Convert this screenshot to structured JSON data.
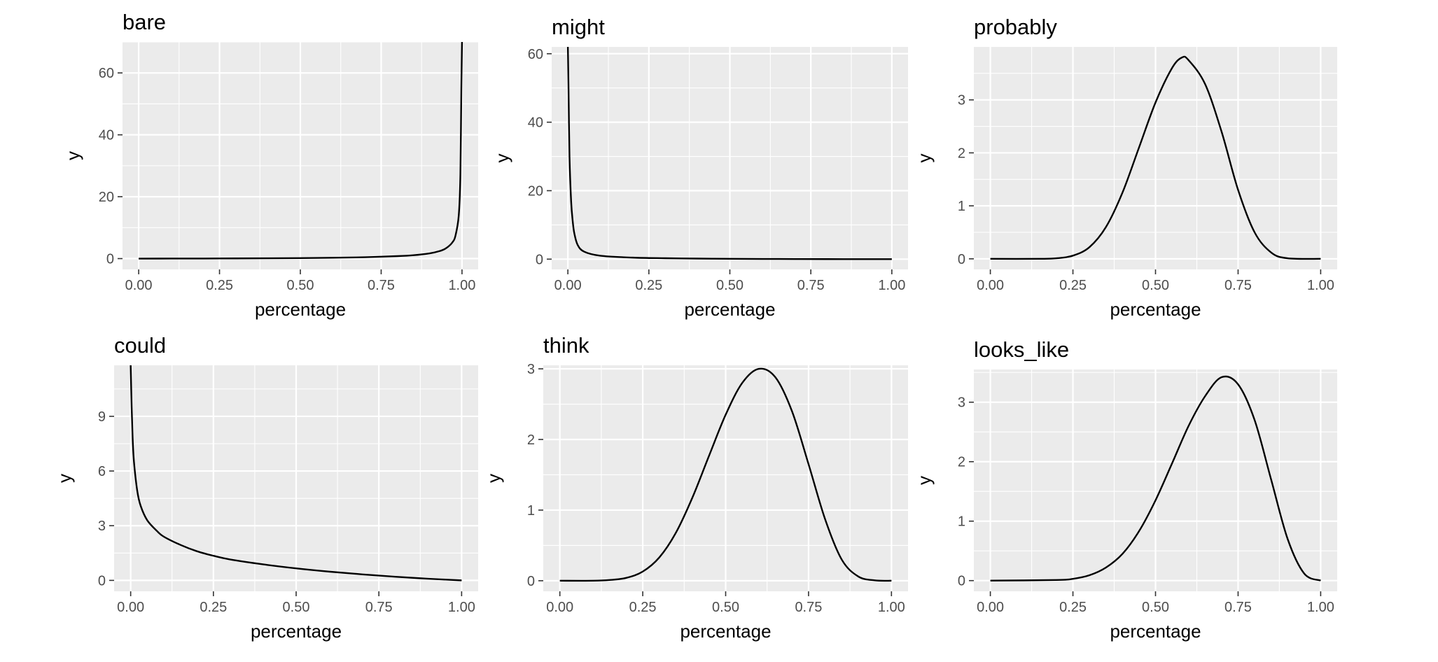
{
  "colors": {
    "panel_background": "#EBEBEB",
    "grid": "#FFFFFF",
    "line": "#000000",
    "tick_text": "#4D4D4D"
  },
  "chart_data": [
    {
      "type": "line",
      "title": "bare",
      "xlabel": "percentage",
      "ylabel": "y",
      "xlim": [
        -0.05,
        1.05
      ],
      "ylim": [
        -3.5,
        70
      ],
      "xticks": [
        0,
        0.25,
        0.5,
        0.75,
        1
      ],
      "xtick_labels": [
        "0.00",
        "0.25",
        "0.50",
        "0.75",
        "1.00"
      ],
      "yticks": [
        0,
        20,
        40,
        60
      ],
      "ytick_labels": [
        "0",
        "20",
        "40",
        "60"
      ],
      "grid": true,
      "series": [
        {
          "x": [
            0,
            0.1,
            0.2,
            0.3,
            0.4,
            0.5,
            0.6,
            0.7,
            0.8,
            0.85,
            0.9,
            0.93,
            0.95,
            0.97,
            0.98,
            0.99,
            0.995,
            0.998,
            1.0
          ],
          "y": [
            0,
            0.01,
            0.03,
            0.06,
            0.1,
            0.17,
            0.27,
            0.45,
            0.8,
            1.1,
            1.7,
            2.4,
            3.3,
            5.2,
            7.5,
            14,
            27,
            55,
            70
          ]
        }
      ]
    },
    {
      "type": "line",
      "title": "might",
      "xlabel": "percentage",
      "ylabel": "y",
      "xlim": [
        -0.05,
        1.05
      ],
      "ylim": [
        -3,
        62
      ],
      "xticks": [
        0,
        0.25,
        0.5,
        0.75,
        1
      ],
      "xtick_labels": [
        "0.00",
        "0.25",
        "0.50",
        "0.75",
        "1.00"
      ],
      "yticks": [
        0,
        20,
        40,
        60
      ],
      "ytick_labels": [
        "0",
        "20",
        "40",
        "60"
      ],
      "grid": true,
      "series": [
        {
          "x": [
            0.0,
            0.002,
            0.005,
            0.01,
            0.015,
            0.02,
            0.03,
            0.05,
            0.1,
            0.2,
            0.3,
            0.4,
            0.5,
            0.6,
            0.7,
            0.8,
            0.9,
            1.0
          ],
          "y": [
            62,
            50,
            30,
            17,
            11,
            7.5,
            4.2,
            2.2,
            1.0,
            0.45,
            0.27,
            0.17,
            0.1,
            0.06,
            0.03,
            0.015,
            0.005,
            0
          ]
        }
      ]
    },
    {
      "type": "line",
      "title": "probably",
      "xlabel": "percentage",
      "ylabel": "y",
      "xlim": [
        -0.05,
        1.05
      ],
      "ylim": [
        -0.2,
        4.0
      ],
      "xticks": [
        0,
        0.25,
        0.5,
        0.75,
        1
      ],
      "xtick_labels": [
        "0.00",
        "0.25",
        "0.50",
        "0.75",
        "1.00"
      ],
      "yticks": [
        0,
        1,
        2,
        3
      ],
      "ytick_labels": [
        "0",
        "1",
        "2",
        "3"
      ],
      "grid": true,
      "series": [
        {
          "x": [
            0,
            0.15,
            0.2,
            0.25,
            0.3,
            0.35,
            0.4,
            0.45,
            0.5,
            0.55,
            0.58,
            0.6,
            0.65,
            0.7,
            0.75,
            0.8,
            0.85,
            0.9,
            1.0
          ],
          "y": [
            0,
            0,
            0.01,
            0.06,
            0.22,
            0.6,
            1.25,
            2.1,
            2.95,
            3.6,
            3.8,
            3.75,
            3.3,
            2.4,
            1.3,
            0.5,
            0.12,
            0.01,
            0
          ]
        }
      ]
    },
    {
      "type": "line",
      "title": "could",
      "xlabel": "percentage",
      "ylabel": "y",
      "xlim": [
        -0.05,
        1.05
      ],
      "ylim": [
        -0.6,
        11.8
      ],
      "xticks": [
        0,
        0.25,
        0.5,
        0.75,
        1
      ],
      "xtick_labels": [
        "0.00",
        "0.25",
        "0.50",
        "0.75",
        "1.00"
      ],
      "yticks": [
        0,
        3,
        6,
        9
      ],
      "ytick_labels": [
        "0",
        "3",
        "6",
        "9"
      ],
      "grid": true,
      "series": [
        {
          "x": [
            0.0,
            0.003,
            0.006,
            0.01,
            0.02,
            0.03,
            0.05,
            0.08,
            0.1,
            0.15,
            0.2,
            0.25,
            0.3,
            0.4,
            0.5,
            0.6,
            0.7,
            0.8,
            0.9,
            1.0
          ],
          "y": [
            11.8,
            9.5,
            7.8,
            6.5,
            4.9,
            4.1,
            3.3,
            2.7,
            2.4,
            1.95,
            1.6,
            1.35,
            1.15,
            0.88,
            0.66,
            0.48,
            0.33,
            0.2,
            0.09,
            0
          ]
        }
      ]
    },
    {
      "type": "line",
      "title": "think",
      "xlabel": "percentage",
      "ylabel": "y",
      "xlim": [
        -0.05,
        1.05
      ],
      "ylim": [
        -0.15,
        3.05
      ],
      "xticks": [
        0,
        0.25,
        0.5,
        0.75,
        1
      ],
      "xtick_labels": [
        "0.00",
        "0.25",
        "0.50",
        "0.75",
        "1.00"
      ],
      "yticks": [
        0,
        1,
        2,
        3
      ],
      "ytick_labels": [
        "0",
        "1",
        "2",
        "3"
      ],
      "grid": true,
      "series": [
        {
          "x": [
            0,
            0.1,
            0.15,
            0.2,
            0.25,
            0.3,
            0.35,
            0.4,
            0.45,
            0.5,
            0.55,
            0.6,
            0.65,
            0.7,
            0.75,
            0.8,
            0.85,
            0.9,
            0.95,
            1.0
          ],
          "y": [
            0,
            0,
            0.01,
            0.04,
            0.13,
            0.33,
            0.68,
            1.18,
            1.77,
            2.35,
            2.8,
            3.0,
            2.88,
            2.4,
            1.65,
            0.87,
            0.3,
            0.06,
            0.005,
            0
          ]
        }
      ]
    },
    {
      "type": "line",
      "title": "looks_like",
      "xlabel": "percentage",
      "ylabel": "y",
      "xlim": [
        -0.05,
        1.05
      ],
      "ylim": [
        -0.18,
        3.55
      ],
      "xticks": [
        0,
        0.25,
        0.5,
        0.75,
        1
      ],
      "xtick_labels": [
        "0.00",
        "0.25",
        "0.50",
        "0.75",
        "1.00"
      ],
      "yticks": [
        0,
        1,
        2,
        3
      ],
      "ytick_labels": [
        "0",
        "1",
        "2",
        "3"
      ],
      "grid": true,
      "series": [
        {
          "x": [
            0,
            0.2,
            0.25,
            0.3,
            0.35,
            0.4,
            0.45,
            0.5,
            0.55,
            0.6,
            0.65,
            0.7,
            0.75,
            0.8,
            0.85,
            0.9,
            0.95,
            1.0
          ],
          "y": [
            0,
            0.01,
            0.03,
            0.09,
            0.22,
            0.45,
            0.83,
            1.35,
            1.97,
            2.6,
            3.1,
            3.42,
            3.3,
            2.7,
            1.7,
            0.7,
            0.12,
            0
          ]
        }
      ]
    }
  ]
}
